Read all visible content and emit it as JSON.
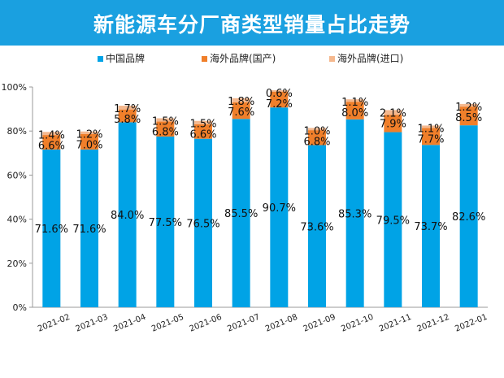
{
  "chart_data": {
    "type": "bar",
    "stacked": true,
    "title": "新能源车分厂商类型销量占比走势",
    "categories": [
      "2021-02",
      "2021-03",
      "2021-04",
      "2021-05",
      "2021-06",
      "2021-07",
      "2021-08",
      "2021-09",
      "2021-10",
      "2021-11",
      "2021-12",
      "2022-01"
    ],
    "series": [
      {
        "name": "中国品牌",
        "color": "#00a3e6",
        "values": [
          71.6,
          71.6,
          84.0,
          77.5,
          76.5,
          85.5,
          90.7,
          73.6,
          85.3,
          79.5,
          73.7,
          82.6
        ],
        "labels": [
          "71.6%",
          "71.6%",
          "84.0%",
          "77.5%",
          "76.5%",
          "85.5%",
          "90.7%",
          "73.6%",
          "85.3%",
          "79.5%",
          "73.7%",
          "82.6%"
        ]
      },
      {
        "name": "海外品牌(国产)",
        "color": "#f07f2a",
        "values": [
          6.6,
          7.0,
          5.8,
          6.8,
          6.6,
          7.6,
          7.2,
          6.8,
          8.0,
          7.9,
          7.7,
          8.5
        ],
        "labels": [
          "6.6%",
          "7.0%",
          "5.8%",
          "6.8%",
          "6.6%",
          "7.6%",
          "7.2%",
          "6.8%",
          "8.0%",
          "7.9%",
          "7.7%",
          "8.5%"
        ]
      },
      {
        "name": "海外品牌(进口)",
        "color": "#f5b88e",
        "values": [
          1.4,
          1.2,
          1.7,
          1.5,
          1.5,
          1.8,
          0.6,
          1.0,
          1.1,
          2.1,
          1.1,
          1.2
        ],
        "labels": [
          "1.4%",
          "1.2%",
          "1.7%",
          "1.5%",
          "1.5%",
          "1.8%",
          "0.6%",
          "1.0%",
          "1.1%",
          "2.1%",
          "1.1%",
          "1.2%"
        ]
      }
    ],
    "ylim": [
      0,
      100
    ],
    "yticks": [
      "0%",
      "20%",
      "40%",
      "60%",
      "80%",
      "100%"
    ],
    "legend_position": "top-center"
  }
}
